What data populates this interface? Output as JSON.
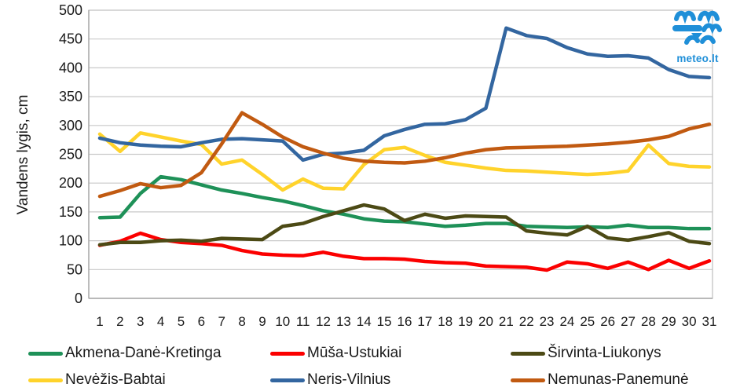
{
  "logo": {
    "text": "meteo.lt",
    "color": "#1F8FD8",
    "icon": "waves-logo"
  },
  "chart_data": {
    "type": "line",
    "title": "",
    "xlabel": "",
    "ylabel": "Vandens lygis, cm",
    "ylim": [
      0,
      500
    ],
    "y_ticks": [
      0,
      50,
      100,
      150,
      200,
      250,
      300,
      350,
      400,
      450,
      500
    ],
    "grid": "horizontal",
    "legend_position": "bottom",
    "x": [
      1,
      2,
      3,
      4,
      5,
      6,
      7,
      8,
      9,
      10,
      11,
      12,
      13,
      14,
      15,
      16,
      17,
      18,
      19,
      20,
      21,
      22,
      23,
      24,
      25,
      26,
      27,
      28,
      29,
      30,
      31
    ],
    "series": [
      {
        "name": "Akmena-Danė-Kretinga",
        "color": "#1E9158",
        "values": [
          140,
          141,
          182,
          211,
          206,
          197,
          188,
          182,
          175,
          169,
          161,
          152,
          146,
          138,
          134,
          133,
          129,
          125,
          127,
          130,
          130,
          125,
          124,
          123,
          124,
          123,
          127,
          123,
          123,
          121,
          121
        ]
      },
      {
        "name": "Mūša-Ustukiai",
        "color": "#FB0000",
        "values": [
          92,
          99,
          113,
          102,
          97,
          95,
          92,
          83,
          77,
          75,
          74,
          80,
          73,
          69,
          69,
          68,
          64,
          62,
          61,
          56,
          55,
          54,
          49,
          63,
          60,
          52,
          63,
          50,
          66,
          52,
          65
        ]
      },
      {
        "name": "Širvinta-Liukonys",
        "color": "#4C4A15",
        "values": [
          93,
          97,
          97,
          100,
          101,
          99,
          104,
          103,
          102,
          125,
          130,
          142,
          152,
          162,
          155,
          135,
          146,
          139,
          143,
          142,
          141,
          117,
          113,
          110,
          125,
          105,
          101,
          107,
          114,
          99,
          95
        ]
      },
      {
        "name": "Nevėžis-Babtai",
        "color": "#FFD32B",
        "values": [
          285,
          255,
          287,
          280,
          273,
          267,
          233,
          240,
          215,
          188,
          207,
          191,
          190,
          232,
          258,
          262,
          248,
          236,
          231,
          226,
          222,
          221,
          219,
          217,
          215,
          217,
          221,
          266,
          234,
          229,
          228
        ]
      },
      {
        "name": "Neris-Vilnius",
        "color": "#3366A0",
        "values": [
          278,
          270,
          266,
          264,
          263,
          270,
          276,
          277,
          275,
          273,
          240,
          250,
          252,
          257,
          282,
          293,
          302,
          303,
          310,
          330,
          469,
          456,
          451,
          435,
          424,
          420,
          421,
          417,
          397,
          385,
          383
        ]
      },
      {
        "name": "Nemunas-Panemunė",
        "color": "#C15A11",
        "values": [
          177,
          187,
          199,
          192,
          196,
          218,
          268,
          322,
          302,
          280,
          263,
          252,
          243,
          238,
          236,
          235,
          238,
          244,
          252,
          258,
          261,
          262,
          263,
          264,
          266,
          268,
          271,
          275,
          281,
          294,
          302
        ]
      }
    ]
  }
}
